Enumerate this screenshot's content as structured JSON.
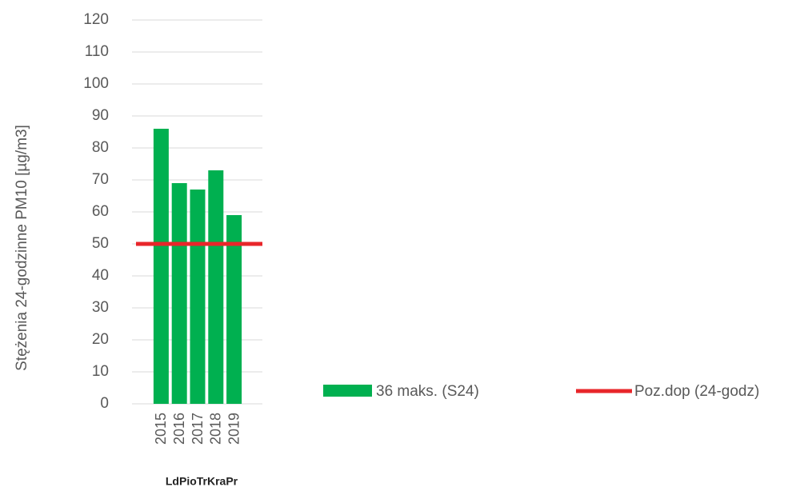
{
  "chart_data": {
    "type": "bar",
    "y_axis_label": "Stężenia 24-godzinne PM10 [µg/m3]",
    "group_label": "LdPioTrKraPr",
    "categories": [
      "2015",
      "2016",
      "2017",
      "2018",
      "2019"
    ],
    "series": [
      {
        "name": "36 maks. (S24)",
        "type": "bar",
        "color": "#00b050",
        "values": [
          86,
          69,
          67,
          73,
          59
        ]
      },
      {
        "name": "Poz.dop (24-godz)",
        "type": "line",
        "color": "#e8262a",
        "values": [
          50,
          50,
          50,
          50,
          50
        ]
      }
    ],
    "ylim": [
      0,
      120
    ],
    "yticks": [
      0,
      10,
      20,
      30,
      40,
      50,
      60,
      70,
      80,
      90,
      100,
      110,
      120
    ],
    "grid": true
  }
}
